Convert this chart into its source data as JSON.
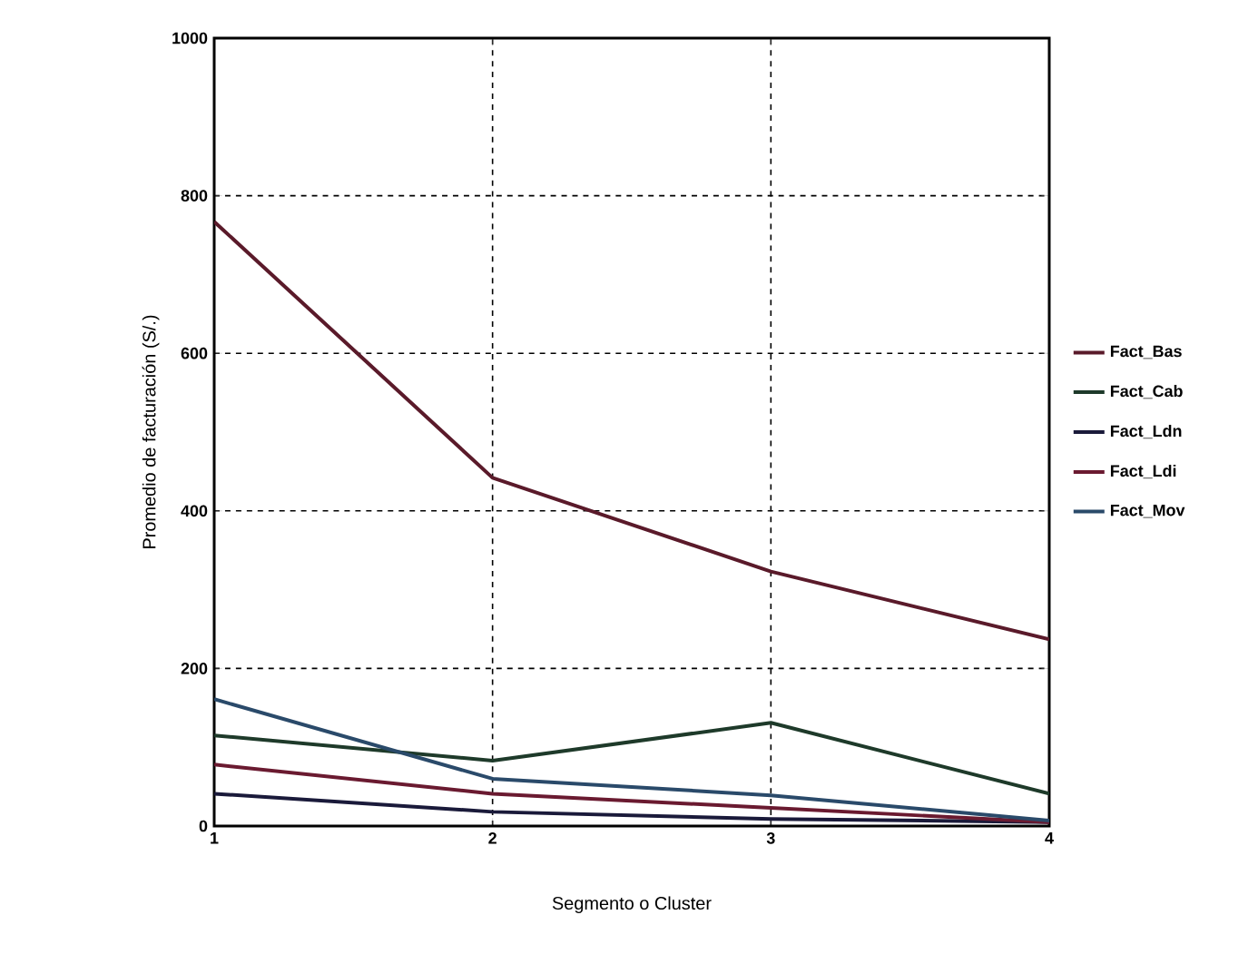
{
  "chart_data": {
    "type": "line",
    "xlabel": "Segmento o Cluster",
    "ylabel": "Promedio de facturación (S/.)",
    "x": [
      1,
      2,
      3,
      4
    ],
    "series": [
      {
        "name": "Fact_Bas",
        "color": "#5a1a2a",
        "values": [
          767,
          442,
          323,
          237
        ]
      },
      {
        "name": "Fact_Cab",
        "color": "#1e3a2a",
        "values": [
          115,
          83,
          131,
          41
        ]
      },
      {
        "name": "Fact_Ldn",
        "color": "#1a1a3a",
        "values": [
          41,
          18,
          9,
          5
        ]
      },
      {
        "name": "Fact_Ldi",
        "color": "#6a1a30",
        "values": [
          78,
          41,
          23,
          5
        ]
      },
      {
        "name": "Fact_Mov",
        "color": "#2a4a6a",
        "values": [
          161,
          60,
          39,
          7
        ]
      }
    ],
    "xlim": [
      1,
      4
    ],
    "ylim": [
      0,
      1000
    ],
    "xticks": [
      1,
      2,
      3,
      4
    ],
    "yticks": [
      0,
      200,
      400,
      600,
      800,
      1000
    ],
    "grid": true,
    "legend": "right",
    "marker": "none",
    "line_style": "solid"
  }
}
